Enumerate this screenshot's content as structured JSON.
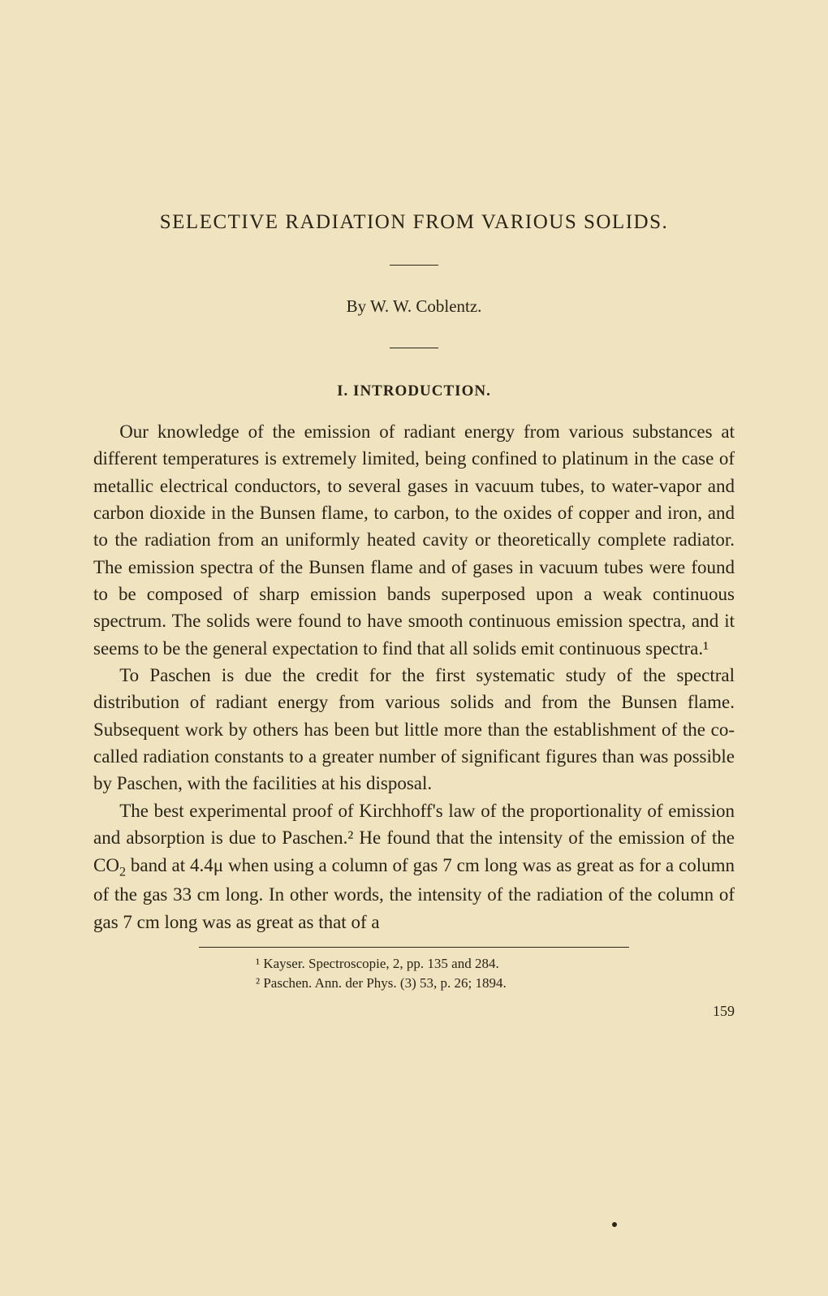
{
  "title": "SELECTIVE RADIATION FROM VARIOUS SOLIDS.",
  "author": "By W. W. Coblentz.",
  "section_heading": "I. INTRODUCTION.",
  "paragraphs": {
    "p1": "Our knowledge of the emission of radiant energy from various substances at different temperatures is extremely limited, being confined to platinum in the case of metallic electrical conductors, to several gases in vacuum tubes, to water-vapor and carbon dioxide in the Bunsen flame, to carbon, to the oxides of copper and iron, and to the radiation from an uniformly heated cavity or theoretically complete radiator. The emission spectra of the Bunsen flame and of gases in vacuum tubes were found to be composed of sharp emission bands superposed upon a weak continuous spectrum. The solids were found to have smooth continuous emission spectra, and it seems to be the general expectation to find that all solids emit continuous spectra.¹",
    "p2": "To Paschen is due the credit for the first systematic study of the spectral distribution of radiant energy from various solids and from the Bunsen flame. Subsequent work by others has been but little more than the establishment of the co-called radiation constants to a greater number of significant figures than was possible by Paschen, with the facilities at his disposal.",
    "p3_part1": "The best experimental proof of Kirchhoff's law of the proportionality of emission and absorption is due to Paschen.² He found that the intensity of the emission of the CO",
    "p3_sub": "2",
    "p3_part2": " band at 4.4μ when using a column of gas 7 cm long was as great as for a column of the gas 33 cm long. In other words, the intensity of the radiation of the column of gas 7 cm long was as great as that of a"
  },
  "footnotes": {
    "fn1": "¹ Kayser. Spectroscopie, 2, pp. 135 and 284.",
    "fn2": "² Paschen. Ann. der Phys. (3) 53, p. 26; 1894."
  },
  "page_number": "159",
  "colors": {
    "background": "#f0e4c0",
    "text": "#2a2418"
  },
  "typography": {
    "title_fontsize": 25,
    "author_fontsize": 21,
    "heading_fontsize": 19,
    "body_fontsize": 23,
    "footnote_fontsize": 17,
    "font_family": "Georgia, Times New Roman, serif"
  }
}
